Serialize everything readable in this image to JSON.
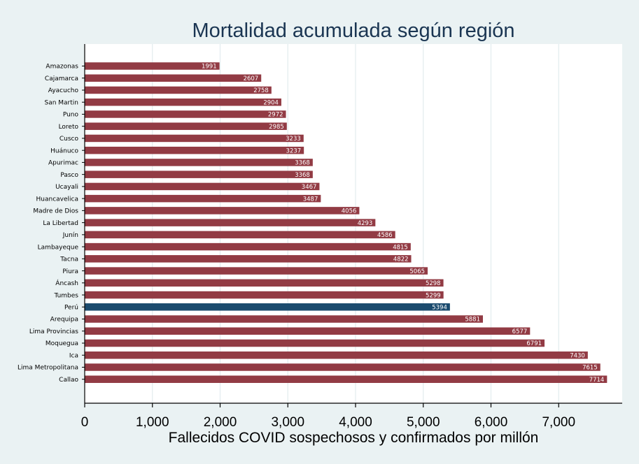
{
  "chart_data": {
    "type": "bar",
    "orientation": "horizontal",
    "title": "Mortalidad acumulada según región",
    "xlabel": "Fallecidos COVID sospechosos y confirmados por millón",
    "ylabel": "",
    "xlim": [
      0,
      8000
    ],
    "xticks": [
      0,
      1000,
      2000,
      3000,
      4000,
      5000,
      6000,
      7000
    ],
    "xtick_labels": [
      "0",
      "1,000",
      "2,000",
      "3,000",
      "4,000",
      "5,000",
      "6,000",
      "7,000"
    ],
    "grid": true,
    "categories": [
      "Amazonas",
      "Cajamarca",
      "Ayacucho",
      "San Martin",
      "Puno",
      "Loreto",
      "Cusco",
      "Huánuco",
      "Apurimac",
      "Pasco",
      "Ucayali",
      "Huancavelica",
      "Madre de Dios",
      "La Libertad",
      "Junín",
      "Lambayeque",
      "Tacna",
      "Piura",
      "Áncash",
      "Tumbes",
      "Perú",
      "Arequipa",
      "Lima Provincias",
      "Moquegua",
      "Ica",
      "Lima Metropolitana",
      "Callao"
    ],
    "values": [
      1991,
      2607,
      2758,
      2904,
      2972,
      2985,
      3233,
      3237,
      3368,
      3368,
      3467,
      3487,
      4056,
      4293,
      4586,
      4815,
      4822,
      5065,
      5298,
      5299,
      5394,
      5881,
      6577,
      6791,
      7430,
      7615,
      7714
    ],
    "data_labels": [
      "1991",
      "2607",
      "2758",
      "2904",
      "2972",
      "2985",
      "3233",
      "3237",
      "3368",
      "3368",
      "3467",
      "3487",
      "4056",
      "4293",
      "4586",
      "4815",
      "4822",
      "5065",
      "5298",
      "5299",
      "5394",
      "5881",
      "6577",
      "6791",
      "7430",
      "7615",
      "7714"
    ],
    "highlight": "Perú",
    "colors": {
      "bar": "#923b44",
      "highlight": "#1b4b6e",
      "plot_bg": "#ffffff",
      "page_bg": "#eaf2f3",
      "grid": "#e2ecee",
      "title": "#1a3552"
    }
  }
}
